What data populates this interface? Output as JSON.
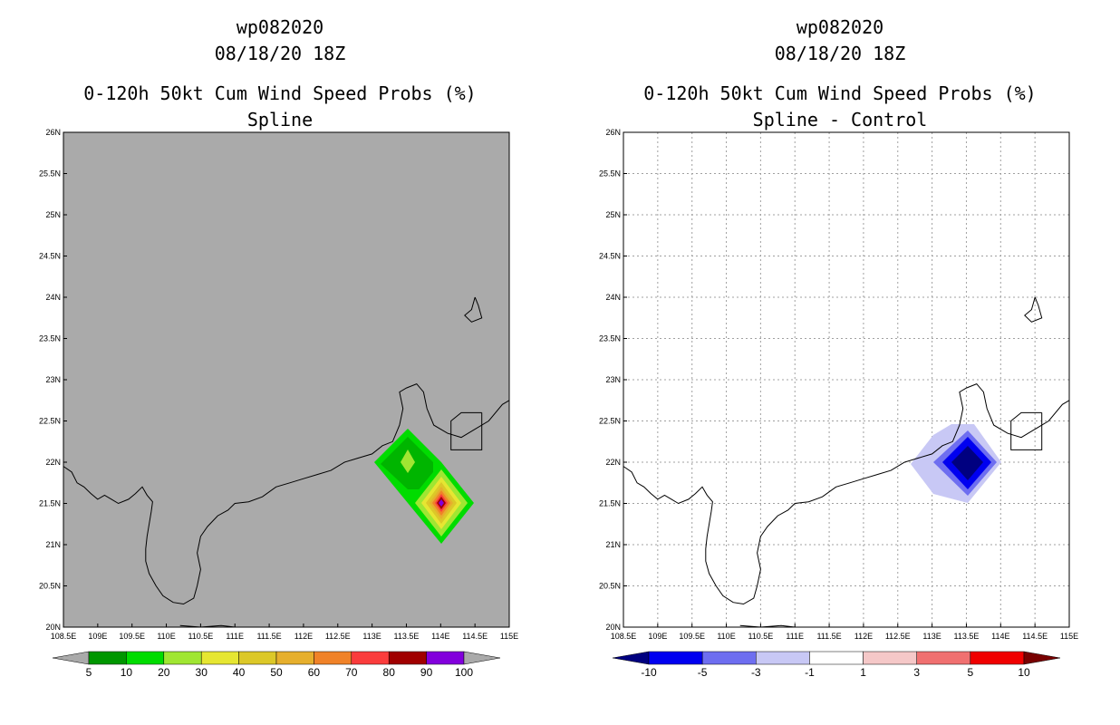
{
  "chart_data": [
    {
      "type": "heatmap",
      "title": [
        "wp082020",
        "08/18/20 18Z",
        "0-120h 50kt Cum Wind Speed Probs (%)",
        "Spline"
      ],
      "xlim": [
        108.5,
        115
      ],
      "ylim": [
        20,
        26
      ],
      "xticks": [
        108.5,
        109,
        109.5,
        110,
        110.5,
        111,
        111.5,
        112,
        112.5,
        113,
        113.5,
        114,
        114.5,
        115
      ],
      "xtick_labels": [
        "108.5E",
        "109E",
        "109.5E",
        "110E",
        "110.5E",
        "111E",
        "111.5E",
        "112E",
        "112.5E",
        "113E",
        "113.5E",
        "114E",
        "114.5E",
        "115E"
      ],
      "yticks": [
        20,
        20.5,
        21,
        21.5,
        22,
        22.5,
        23,
        23.5,
        24,
        24.5,
        25,
        25.5,
        26
      ],
      "ytick_labels": [
        "20N",
        "20.5N",
        "21N",
        "21.5N",
        "22N",
        "22.5N",
        "23N",
        "23.5N",
        "24N",
        "24.5N",
        "25N",
        "25.5N",
        "26N"
      ],
      "grid": false,
      "background_color": "#aaaaaa",
      "field": [
        {
          "lon": 113.0,
          "lat": 22.0,
          "value": 5
        },
        {
          "lon": 113.5,
          "lat": 22.0,
          "value": 25
        },
        {
          "lon": 113.5,
          "lat": 22.5,
          "value": 5
        },
        {
          "lon": 114.0,
          "lat": 21.5,
          "value": 100
        },
        {
          "lon": 114.0,
          "lat": 21.0,
          "value": 5
        },
        {
          "lon": 114.0,
          "lat": 22.0,
          "value": 5
        }
      ],
      "colorbar": {
        "levels": [
          "5",
          "10",
          "20",
          "30",
          "40",
          "50",
          "60",
          "70",
          "80",
          "90",
          "100"
        ],
        "colors": [
          "#aaaaaa",
          "#009600",
          "#00dc00",
          "#a0e632",
          "#e6e632",
          "#dcc828",
          "#e6af2d",
          "#f08228",
          "#fa3c3c",
          "#a00000",
          "#8200dc",
          "#aaaaaa"
        ]
      }
    },
    {
      "type": "heatmap",
      "title": [
        "wp082020",
        "08/18/20 18Z",
        "0-120h 50kt Cum Wind Speed Probs (%)",
        "Spline - Control"
      ],
      "xlim": [
        108.5,
        115
      ],
      "ylim": [
        20,
        26
      ],
      "xticks": [
        108.5,
        109,
        109.5,
        110,
        110.5,
        111,
        111.5,
        112,
        112.5,
        113,
        113.5,
        114,
        114.5,
        115
      ],
      "xtick_labels": [
        "108.5E",
        "109E",
        "109.5E",
        "110E",
        "110.5E",
        "111E",
        "111.5E",
        "112E",
        "112.5E",
        "113E",
        "113.5E",
        "114E",
        "114.5E",
        "115E"
      ],
      "yticks": [
        20,
        20.5,
        21,
        21.5,
        22,
        22.5,
        23,
        23.5,
        24,
        24.5,
        25,
        25.5,
        26
      ],
      "ytick_labels": [
        "20N",
        "20.5N",
        "21N",
        "21.5N",
        "22N",
        "22.5N",
        "23N",
        "23.5N",
        "24N",
        "24.5N",
        "25N",
        "25.5N",
        "26N"
      ],
      "grid": true,
      "background_color": "#ffffff",
      "field": [
        {
          "lon": 113.5,
          "lat": 22.0,
          "value": -12
        },
        {
          "lon": 113.0,
          "lat": 22.0,
          "value": -2
        },
        {
          "lon": 113.5,
          "lat": 22.5,
          "value": -2
        },
        {
          "lon": 114.0,
          "lat": 22.0,
          "value": -2
        },
        {
          "lon": 113.5,
          "lat": 21.5,
          "value": -2
        }
      ],
      "colorbar": {
        "levels": [
          "-10",
          "-5",
          "-3",
          "-1",
          "1",
          "3",
          "5",
          "10"
        ],
        "colors": [
          "#000080",
          "#0000f0",
          "#6e6ef0",
          "#c8c8f5",
          "#ffffff",
          "#f5c8c8",
          "#f07070",
          "#f00000",
          "#780000"
        ]
      }
    }
  ]
}
